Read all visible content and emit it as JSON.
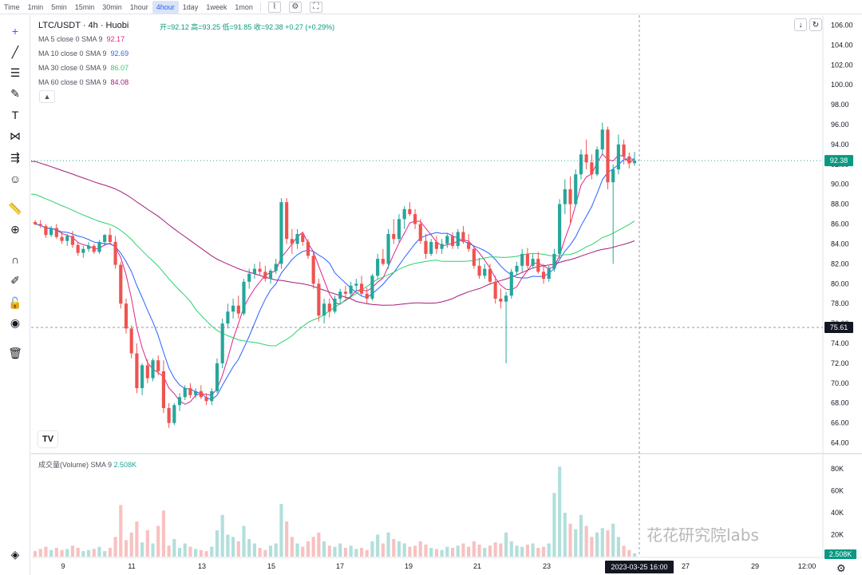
{
  "toolbar": {
    "timeframes": [
      "Time",
      "1min",
      "5min",
      "15min",
      "30min",
      "1hour",
      "4hour",
      "1day",
      "1week",
      "1mon"
    ],
    "active": "4hour",
    "icons": [
      "chart-type-icon",
      "indicator-settings-icon",
      "fullscreen-icon"
    ]
  },
  "sidebar": {
    "tools": [
      "crosshair-icon",
      "trend-line-icon",
      "horizontal-lines-icon",
      "brush-icon",
      "text-icon",
      "pattern-icon",
      "fib-icon",
      "emoji-icon",
      "ruler-icon",
      "zoom-in-icon",
      "magnet-icon",
      "lock-drawing-icon",
      "lock-icon",
      "eye-icon",
      "trash-icon",
      "layers-icon"
    ]
  },
  "header": {
    "symbol": "LTC/USDT · 4h · Huobi",
    "ohlc": "开=92.12  高=93.25  低=91.85  收=92.38  +0.27 (+0.29%)"
  },
  "legend": [
    {
      "label": "MA 5 close 0 SMA 9",
      "value": "92.17",
      "color": "#e0218a"
    },
    {
      "label": "MA 10 close 0 SMA 9",
      "value": "92.69",
      "color": "#2962ff"
    },
    {
      "label": "MA 30 close 0 SMA 9",
      "value": "86.07",
      "color": "#2bd16a"
    },
    {
      "label": "MA 60 close 0 SMA 9",
      "value": "84.08",
      "color": "#a61c7b"
    }
  ],
  "volume": {
    "label": "成交量(Volume) SMA 9",
    "value": "2.508K",
    "badge": "2.508K"
  },
  "price_badges": {
    "last": "92.38",
    "crosshair": "75.61"
  },
  "time_badge": "2023-03-25  16:00",
  "watermark": "花花研究院labs",
  "logo": "TV",
  "colors": {
    "up": "#26a69a",
    "down": "#ef5350",
    "up_vol": "#b2dfdb",
    "down_vol": "#f8c1c1",
    "last_badge": "#089981"
  },
  "chart_data": {
    "type": "candlestick",
    "title": "LTC/USDT · 4h · Huobi",
    "price_axis": {
      "ticks": [
        "106.00",
        "104.00",
        "102.00",
        "100.00",
        "98.00",
        "96.00",
        "94.00",
        "92.00",
        "90.00",
        "88.00",
        "86.00",
        "84.00",
        "82.00",
        "80.00",
        "78.00",
        "76.00",
        "74.00",
        "72.00",
        "70.00",
        "68.00",
        "66.00",
        "64.00"
      ],
      "ylim": [
        63,
        107
      ]
    },
    "volume_axis": {
      "ticks": [
        "80K",
        "60K",
        "40K",
        "20K"
      ],
      "ylim": [
        0,
        88
      ]
    },
    "x_axis": {
      "ticks": [
        "9",
        "11",
        "13",
        "15",
        "17",
        "19",
        "21",
        "23",
        "25",
        "27",
        "29",
        "12:00"
      ]
    },
    "candles": [
      [
        86.2,
        86.4,
        85.9,
        86.0,
        5
      ],
      [
        86.0,
        86.4,
        85.6,
        85.8,
        7
      ],
      [
        85.8,
        86.0,
        84.6,
        84.9,
        9
      ],
      [
        84.9,
        85.8,
        84.7,
        85.6,
        6
      ],
      [
        85.6,
        86.0,
        84.5,
        84.7,
        8
      ],
      [
        84.7,
        85.2,
        84.0,
        84.3,
        6
      ],
      [
        84.3,
        85.0,
        83.8,
        84.8,
        7
      ],
      [
        84.8,
        85.3,
        83.6,
        83.9,
        10
      ],
      [
        83.9,
        84.2,
        82.8,
        83.1,
        8
      ],
      [
        83.1,
        83.8,
        82.6,
        83.5,
        5
      ],
      [
        83.5,
        84.2,
        83.2,
        83.8,
        6
      ],
      [
        83.8,
        84.0,
        83.0,
        83.2,
        7
      ],
      [
        83.2,
        84.4,
        83.0,
        84.2,
        9
      ],
      [
        84.2,
        85.0,
        83.8,
        84.9,
        5
      ],
      [
        84.9,
        85.6,
        84.0,
        84.2,
        8
      ],
      [
        84.2,
        84.8,
        81.5,
        81.9,
        18
      ],
      [
        81.9,
        82.2,
        77.5,
        78.0,
        47
      ],
      [
        78.0,
        78.5,
        75.0,
        75.5,
        15
      ],
      [
        75.5,
        75.8,
        72.5,
        73.0,
        22
      ],
      [
        73.0,
        74.0,
        69.0,
        69.5,
        32
      ],
      [
        69.5,
        72.0,
        68.8,
        71.8,
        13
      ],
      [
        71.8,
        72.4,
        70.0,
        70.5,
        24
      ],
      [
        70.5,
        72.5,
        70.2,
        72.3,
        12
      ],
      [
        72.3,
        72.8,
        70.8,
        71.2,
        28
      ],
      [
        71.2,
        72.3,
        67.0,
        67.5,
        42
      ],
      [
        67.5,
        68.0,
        65.5,
        66.0,
        10
      ],
      [
        66.0,
        68.0,
        65.8,
        67.8,
        16
      ],
      [
        67.8,
        69.0,
        67.2,
        68.6,
        8
      ],
      [
        68.6,
        69.8,
        68.3,
        69.5,
        12
      ],
      [
        69.5,
        70.0,
        68.5,
        68.8,
        9
      ],
      [
        68.8,
        69.5,
        68.5,
        69.2,
        7
      ],
      [
        69.2,
        69.8,
        68.4,
        68.6,
        6
      ],
      [
        68.6,
        69.0,
        67.8,
        68.2,
        5
      ],
      [
        68.2,
        69.5,
        67.8,
        69.2,
        9
      ],
      [
        69.2,
        72.5,
        69.0,
        72.0,
        24
      ],
      [
        72.0,
        76.5,
        71.5,
        76.0,
        38
      ],
      [
        76.0,
        78.0,
        75.5,
        77.2,
        20
      ],
      [
        77.2,
        78.5,
        76.5,
        77.8,
        18
      ],
      [
        77.8,
        78.8,
        76.5,
        77.0,
        14
      ],
      [
        77.0,
        80.5,
        76.8,
        80.2,
        28
      ],
      [
        80.2,
        81.5,
        79.5,
        81.0,
        16
      ],
      [
        81.0,
        82.0,
        80.5,
        81.5,
        12
      ],
      [
        81.5,
        82.2,
        80.8,
        81.2,
        8
      ],
      [
        81.2,
        81.8,
        80.2,
        80.5,
        6
      ],
      [
        80.5,
        81.5,
        80.0,
        81.3,
        10
      ],
      [
        81.3,
        82.5,
        81.0,
        82.0,
        12
      ],
      [
        82.0,
        88.6,
        81.5,
        88.2,
        48
      ],
      [
        88.2,
        88.6,
        84.0,
        84.5,
        32
      ],
      [
        84.5,
        85.5,
        83.0,
        84.0,
        18
      ],
      [
        84.0,
        85.5,
        83.5,
        85.0,
        12
      ],
      [
        85.0,
        85.2,
        83.8,
        84.2,
        9
      ],
      [
        84.2,
        84.5,
        82.5,
        82.8,
        14
      ],
      [
        82.8,
        83.2,
        79.5,
        80.0,
        18
      ],
      [
        80.0,
        80.5,
        76.2,
        76.8,
        22
      ],
      [
        76.8,
        78.5,
        76.0,
        78.0,
        14
      ],
      [
        78.0,
        78.5,
        76.6,
        77.2,
        10
      ],
      [
        77.2,
        78.8,
        77.0,
        78.5,
        9
      ],
      [
        78.5,
        79.5,
        78.0,
        79.2,
        12
      ],
      [
        79.2,
        79.8,
        78.5,
        79.0,
        8
      ],
      [
        79.0,
        80.2,
        78.6,
        79.8,
        10
      ],
      [
        79.8,
        80.5,
        79.2,
        80.0,
        7
      ],
      [
        80.0,
        80.8,
        78.8,
        79.0,
        8
      ],
      [
        79.0,
        79.6,
        78.0,
        78.5,
        6
      ],
      [
        78.5,
        81.0,
        78.3,
        80.8,
        14
      ],
      [
        80.8,
        83.0,
        80.5,
        82.5,
        20
      ],
      [
        82.5,
        83.5,
        81.8,
        82.0,
        12
      ],
      [
        82.0,
        85.5,
        81.5,
        85.0,
        22
      ],
      [
        85.0,
        86.5,
        84.0,
        84.5,
        16
      ],
      [
        84.5,
        87.0,
        84.2,
        86.5,
        14
      ],
      [
        86.5,
        87.8,
        85.5,
        87.5,
        12
      ],
      [
        87.5,
        88.2,
        86.8,
        87.0,
        9
      ],
      [
        87.0,
        87.5,
        85.5,
        86.0,
        10
      ],
      [
        86.0,
        86.5,
        84.0,
        84.3,
        14
      ],
      [
        84.3,
        85.0,
        82.5,
        83.0,
        11
      ],
      [
        83.0,
        84.5,
        82.8,
        84.2,
        8
      ],
      [
        84.2,
        84.8,
        83.0,
        83.5,
        7
      ],
      [
        83.5,
        84.5,
        83.0,
        84.0,
        6
      ],
      [
        84.0,
        85.0,
        83.6,
        84.8,
        9
      ],
      [
        84.8,
        85.2,
        83.5,
        83.8,
        8
      ],
      [
        83.8,
        85.5,
        83.5,
        85.2,
        10
      ],
      [
        85.2,
        85.8,
        84.0,
        84.2,
        12
      ],
      [
        84.2,
        85.0,
        83.2,
        83.5,
        9
      ],
      [
        83.5,
        83.8,
        81.5,
        81.8,
        14
      ],
      [
        81.8,
        82.6,
        80.5,
        80.8,
        11
      ],
      [
        80.8,
        82.0,
        80.5,
        81.5,
        8
      ],
      [
        81.5,
        82.0,
        80.0,
        80.2,
        10
      ],
      [
        80.2,
        80.8,
        78.0,
        78.5,
        13
      ],
      [
        78.5,
        79.5,
        77.5,
        78.2,
        12
      ],
      [
        78.2,
        79.2,
        72.0,
        78.8,
        22
      ],
      [
        78.8,
        81.5,
        78.5,
        81.2,
        14
      ],
      [
        81.2,
        82.2,
        80.8,
        81.8,
        10
      ],
      [
        81.8,
        83.5,
        81.2,
        83.0,
        9
      ],
      [
        83.0,
        83.6,
        81.5,
        81.8,
        11
      ],
      [
        81.8,
        83.0,
        81.5,
        82.5,
        12
      ],
      [
        82.5,
        83.2,
        81.0,
        81.2,
        8
      ],
      [
        81.2,
        82.0,
        80.0,
        80.5,
        9
      ],
      [
        80.5,
        81.8,
        80.2,
        81.5,
        12
      ],
      [
        81.5,
        83.5,
        81.2,
        83.0,
        58
      ],
      [
        83.0,
        88.5,
        82.5,
        88.0,
        82
      ],
      [
        88.0,
        90.5,
        87.0,
        89.5,
        40
      ],
      [
        89.5,
        90.8,
        86.0,
        88.0,
        30
      ],
      [
        88.0,
        91.5,
        87.8,
        91.0,
        25
      ],
      [
        91.0,
        93.5,
        90.5,
        93.0,
        38
      ],
      [
        93.0,
        94.5,
        91.5,
        92.2,
        28
      ],
      [
        92.2,
        93.0,
        90.5,
        91.0,
        18
      ],
      [
        91.0,
        93.8,
        90.8,
        93.5,
        22
      ],
      [
        93.5,
        96.2,
        93.0,
        95.5,
        26
      ],
      [
        95.5,
        95.8,
        89.5,
        90.2,
        24
      ],
      [
        90.2,
        92.0,
        82.0,
        91.5,
        30
      ],
      [
        91.5,
        95.0,
        91.0,
        94.0,
        18
      ],
      [
        94.0,
        94.5,
        92.0,
        92.8,
        10
      ],
      [
        92.8,
        93.2,
        91.6,
        92.1,
        6
      ],
      [
        92.12,
        93.25,
        91.85,
        92.38,
        3
      ]
    ],
    "hline": 75.61,
    "hline2": 92.38
  }
}
